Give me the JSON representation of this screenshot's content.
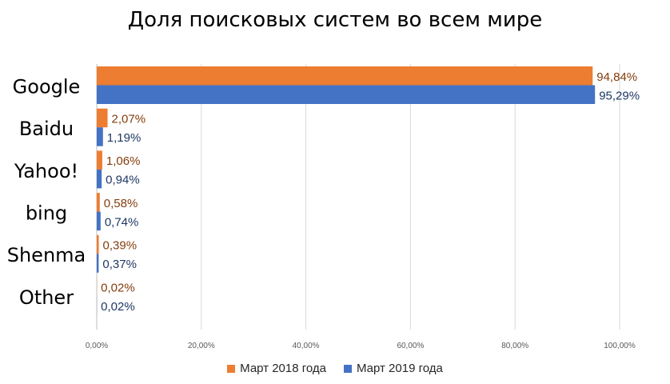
{
  "chart_data": {
    "type": "bar",
    "orientation": "horizontal",
    "title": "Доля поисковых систем во всем мире",
    "categories": [
      "Google",
      "Baidu",
      "Yahoo!",
      "bing",
      "Shenma",
      "Other"
    ],
    "series": [
      {
        "name": "Март 2018 года",
        "color": "#ED7D31",
        "label_color": "#843C0C",
        "values": [
          94.84,
          2.07,
          1.06,
          0.58,
          0.39,
          0.02
        ],
        "labels": [
          "94,84%",
          "2,07%",
          "1,06%",
          "0,58%",
          "0,39%",
          "0,02%"
        ]
      },
      {
        "name": "Март 2019 года",
        "color": "#4472C4",
        "label_color": "#1F3864",
        "values": [
          95.29,
          1.19,
          0.94,
          0.74,
          0.37,
          0.02
        ],
        "labels": [
          "95,29%",
          "1,19%",
          "0,94%",
          "0,74%",
          "0,37%",
          "0,02%"
        ]
      }
    ],
    "xlim": [
      0,
      100
    ],
    "xticks": [
      0,
      20,
      40,
      60,
      80,
      100
    ],
    "xtick_labels": [
      "0,00%",
      "20,00%",
      "40,00%",
      "60,00%",
      "80,00%",
      "100,00%"
    ],
    "grid": true,
    "legend_position": "bottom"
  }
}
